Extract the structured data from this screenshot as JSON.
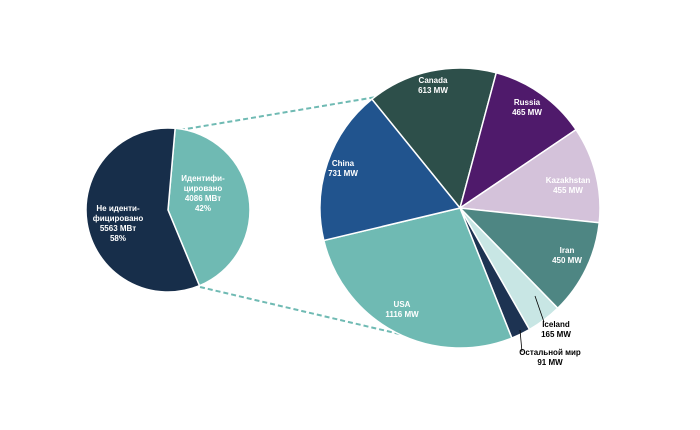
{
  "chart_data": [
    {
      "type": "pie",
      "categories": [
        [
          "Идентифи-",
          "цировано"
        ],
        [
          "Не иденти-",
          "фицировано"
        ]
      ],
      "values": [
        4086,
        5563
      ],
      "value_labels": [
        "4086 МВт",
        "5563 МВт"
      ],
      "shares": [
        42,
        58
      ],
      "share_labels": [
        "42%",
        "58%"
      ],
      "colors": [
        "#6fbab3",
        "#172e4a"
      ]
    },
    {
      "type": "pie",
      "categories": [
        "Canada",
        "Russia",
        "Kazakhstan",
        "Iran",
        "Iceland",
        "Остальной мир",
        "USA",
        "China"
      ],
      "values": [
        613,
        465,
        455,
        450,
        165,
        91,
        1116,
        731
      ],
      "value_labels": [
        "613 MW",
        "465 MW",
        "455 MW",
        "450 MW",
        "165 MW",
        "91 MW",
        "1116 MW",
        "731 MW"
      ],
      "colors": [
        "#2d4f4a",
        "#4f1a6b",
        "#d4c2da",
        "#4e8683",
        "#c8e6e4",
        "#1d3352",
        "#6fbab3",
        "#21548e"
      ]
    }
  ]
}
